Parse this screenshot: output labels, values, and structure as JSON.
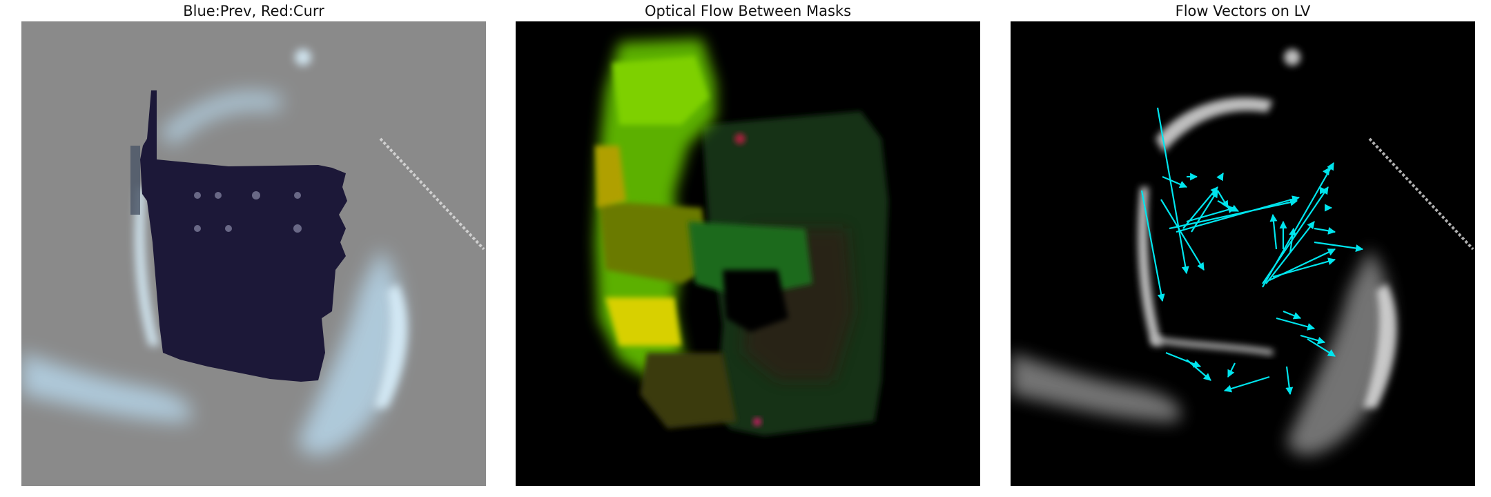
{
  "panels": [
    {
      "title": "Blue:Prev, Red:Curr",
      "icon": "mask-overlay-image"
    },
    {
      "title": "Optical Flow Between Masks",
      "icon": "optical-flow-image"
    },
    {
      "title": "Flow Vectors on LV",
      "icon": "flow-vectors-image"
    }
  ],
  "colors": {
    "overlay_gray": "#8a8a8a",
    "mask_navy": "#1c1838",
    "vector_cyan": "#00e5ee",
    "background": "#000000"
  }
}
